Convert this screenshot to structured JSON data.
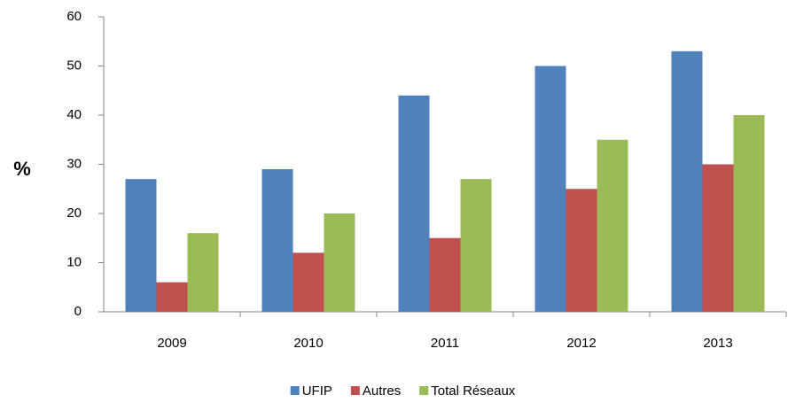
{
  "chart_data": {
    "type": "bar",
    "y_label": "%",
    "categories": [
      "2009",
      "2010",
      "2011",
      "2012",
      "2013"
    ],
    "series": [
      {
        "name": "UFIP",
        "color": "#4f81bd",
        "values": [
          27,
          29,
          44,
          50,
          53
        ]
      },
      {
        "name": "Autres",
        "color": "#c0504d",
        "values": [
          6,
          12,
          15,
          25,
          30
        ]
      },
      {
        "name": "Total Réseaux",
        "color": "#9bbb59",
        "values": [
          16,
          20,
          27,
          35,
          40
        ]
      }
    ],
    "ylim": [
      0,
      60
    ],
    "yticks": [
      0,
      10,
      20,
      30,
      40,
      50,
      60
    ],
    "grid": false,
    "legend": "bottom"
  }
}
